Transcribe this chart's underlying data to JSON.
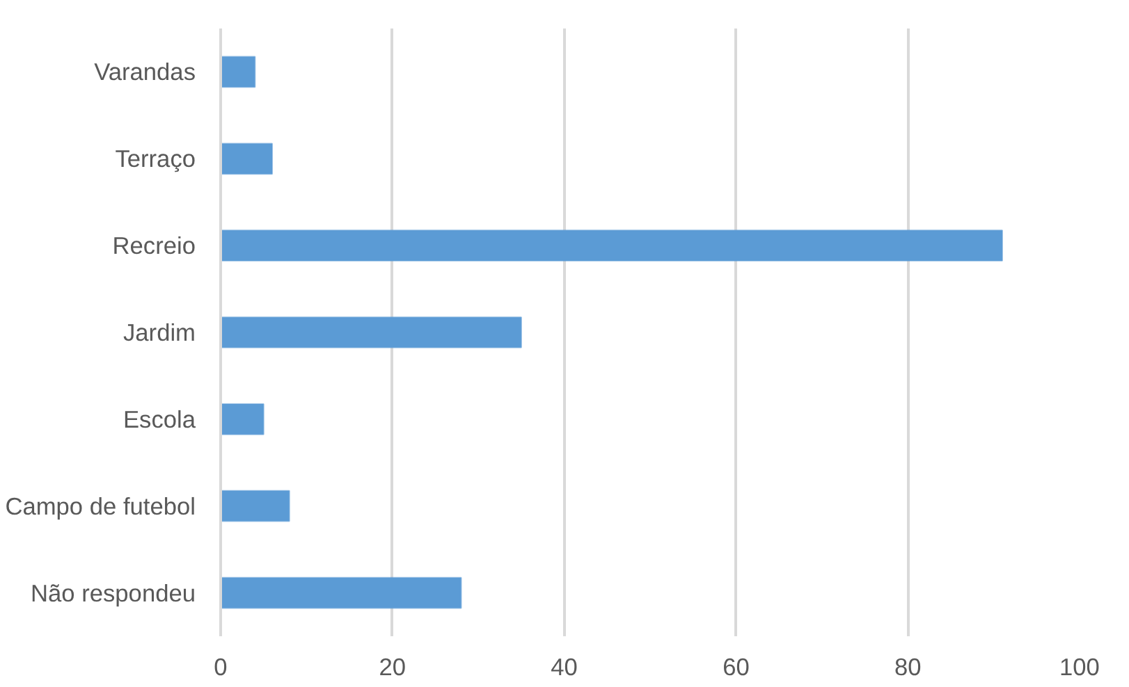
{
  "chart_data": {
    "type": "bar",
    "orientation": "horizontal",
    "categories": [
      "Varandas",
      "Terraço",
      "Recreio",
      "Jardim",
      "Escola",
      "Campo de futebol",
      "Não respondeu"
    ],
    "values": [
      4,
      6,
      91,
      35,
      5,
      8,
      28
    ],
    "color": "#5b9bd5",
    "xlim": [
      0,
      100
    ],
    "xticks": [
      0,
      20,
      40,
      60,
      80,
      100
    ],
    "grid": "x"
  }
}
